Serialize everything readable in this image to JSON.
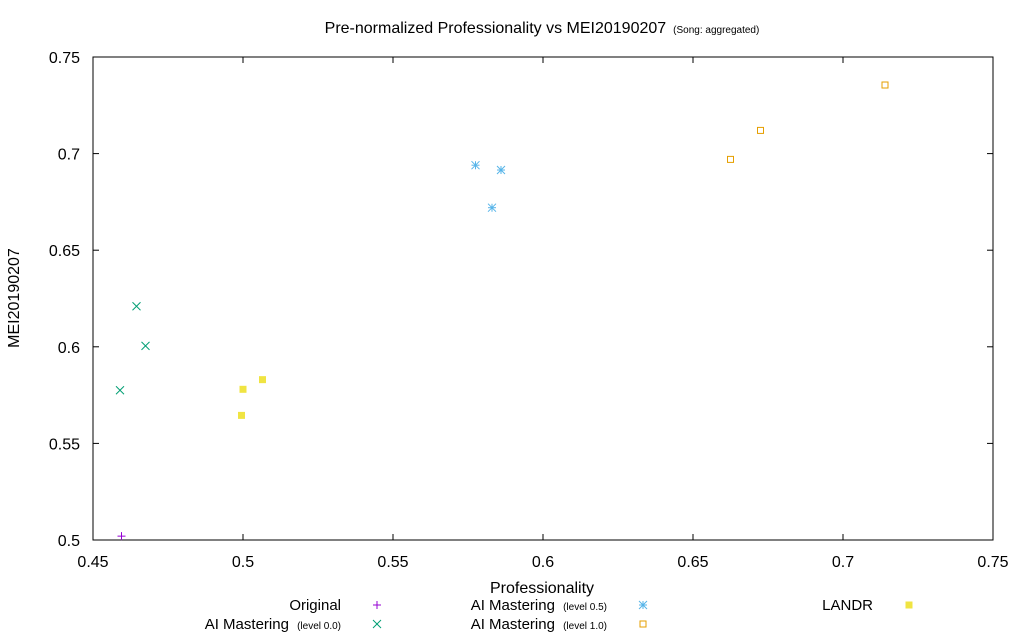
{
  "chart_data": {
    "type": "scatter",
    "title": "Pre-normalized Professionality vs MEI20190207",
    "subtitle": "(Song: aggregated)",
    "xlabel": "Professionality",
    "ylabel": "MEI20190207",
    "xlim": [
      0.45,
      0.75
    ],
    "ylim": [
      0.5,
      0.75
    ],
    "x_ticks": [
      0.45,
      0.5,
      0.55,
      0.6,
      0.65,
      0.7,
      0.75
    ],
    "x_tick_labels": [
      "0.45",
      "0.5",
      "0.55",
      "0.6",
      "0.65",
      "0.7",
      "0.75"
    ],
    "y_ticks": [
      0.5,
      0.55,
      0.6,
      0.65,
      0.7,
      0.75
    ],
    "y_tick_labels": [
      "0.5",
      "0.55",
      "0.6",
      "0.65",
      "0.7",
      "0.75"
    ],
    "grid": false,
    "legend_position": "bottom",
    "series": [
      {
        "name": "Original",
        "name_suffix": "",
        "marker": "plus",
        "color": "#9400d3",
        "points": [
          [
            0.4595,
            0.502
          ]
        ]
      },
      {
        "name": "AI Mastering",
        "name_suffix": "(level 0.0)",
        "marker": "cross",
        "color": "#009e73",
        "points": [
          [
            0.4645,
            0.621
          ],
          [
            0.4675,
            0.6005
          ],
          [
            0.459,
            0.5775
          ]
        ]
      },
      {
        "name": "AI Mastering",
        "name_suffix": "(level 0.5)",
        "marker": "asterisk",
        "color": "#56b4e9",
        "points": [
          [
            0.5775,
            0.694
          ],
          [
            0.586,
            0.6915
          ],
          [
            0.583,
            0.672
          ]
        ]
      },
      {
        "name": "AI Mastering",
        "name_suffix": "(level 1.0)",
        "marker": "open-square",
        "color": "#e69f00",
        "points": [
          [
            0.714,
            0.7355
          ],
          [
            0.6725,
            0.712
          ],
          [
            0.6625,
            0.697
          ]
        ]
      },
      {
        "name": "LANDR",
        "name_suffix": "",
        "marker": "filled-square",
        "color": "#f0e442",
        "points": [
          [
            0.5065,
            0.583
          ],
          [
            0.5,
            0.578
          ],
          [
            0.4995,
            0.5645
          ]
        ]
      }
    ]
  }
}
